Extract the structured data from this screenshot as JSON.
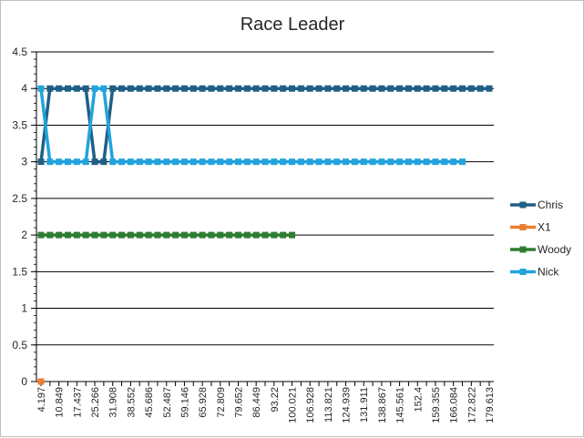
{
  "chart_data": {
    "type": "line",
    "title": "Race Leader",
    "xlabel": "",
    "ylabel": "",
    "ylim": [
      0,
      4.5
    ],
    "yticks": [
      "0",
      "0.5",
      "1",
      "1.5",
      "2",
      "2.5",
      "3",
      "3.5",
      "4",
      "4.5"
    ],
    "grid": true,
    "legend_position": "right",
    "x_tick_labels": [
      "4.197",
      "10.849",
      "17.437",
      "25.266",
      "31.908",
      "38.552",
      "45.686",
      "52.487",
      "59.146",
      "65.928",
      "72.809",
      "79.652",
      "86.449",
      "93.22",
      "100.021",
      "106.928",
      "113.821",
      "124.939",
      "131.911",
      "138.867",
      "145.561",
      "152.4",
      "159.355",
      "166.084",
      "172.822",
      "179.613"
    ],
    "x_count": 51,
    "series": [
      {
        "name": "Chris",
        "color": "#1f5f86",
        "values": [
          3,
          4,
          4,
          4,
          4,
          4,
          3,
          3,
          4,
          4,
          4,
          4,
          4,
          4,
          4,
          4,
          4,
          4,
          4,
          4,
          4,
          4,
          4,
          4,
          4,
          4,
          4,
          4,
          4,
          4,
          4,
          4,
          4,
          4,
          4,
          4,
          4,
          4,
          4,
          4,
          4,
          4,
          4,
          4,
          4,
          4,
          4,
          4,
          4,
          4,
          4
        ]
      },
      {
        "name": "X1",
        "color": "#ed7d31",
        "values": [
          0
        ]
      },
      {
        "name": "Woody",
        "color": "#2e7d32",
        "values": [
          2,
          2,
          2,
          2,
          2,
          2,
          2,
          2,
          2,
          2,
          2,
          2,
          2,
          2,
          2,
          2,
          2,
          2,
          2,
          2,
          2,
          2,
          2,
          2,
          2,
          2,
          2,
          2,
          2
        ]
      },
      {
        "name": "Nick",
        "color": "#22a3dc",
        "values": [
          4,
          3,
          3,
          3,
          3,
          3,
          4,
          4,
          3,
          3,
          3,
          3,
          3,
          3,
          3,
          3,
          3,
          3,
          3,
          3,
          3,
          3,
          3,
          3,
          3,
          3,
          3,
          3,
          3,
          3,
          3,
          3,
          3,
          3,
          3,
          3,
          3,
          3,
          3,
          3,
          3,
          3,
          3,
          3,
          3,
          3,
          3,
          3
        ]
      }
    ]
  }
}
